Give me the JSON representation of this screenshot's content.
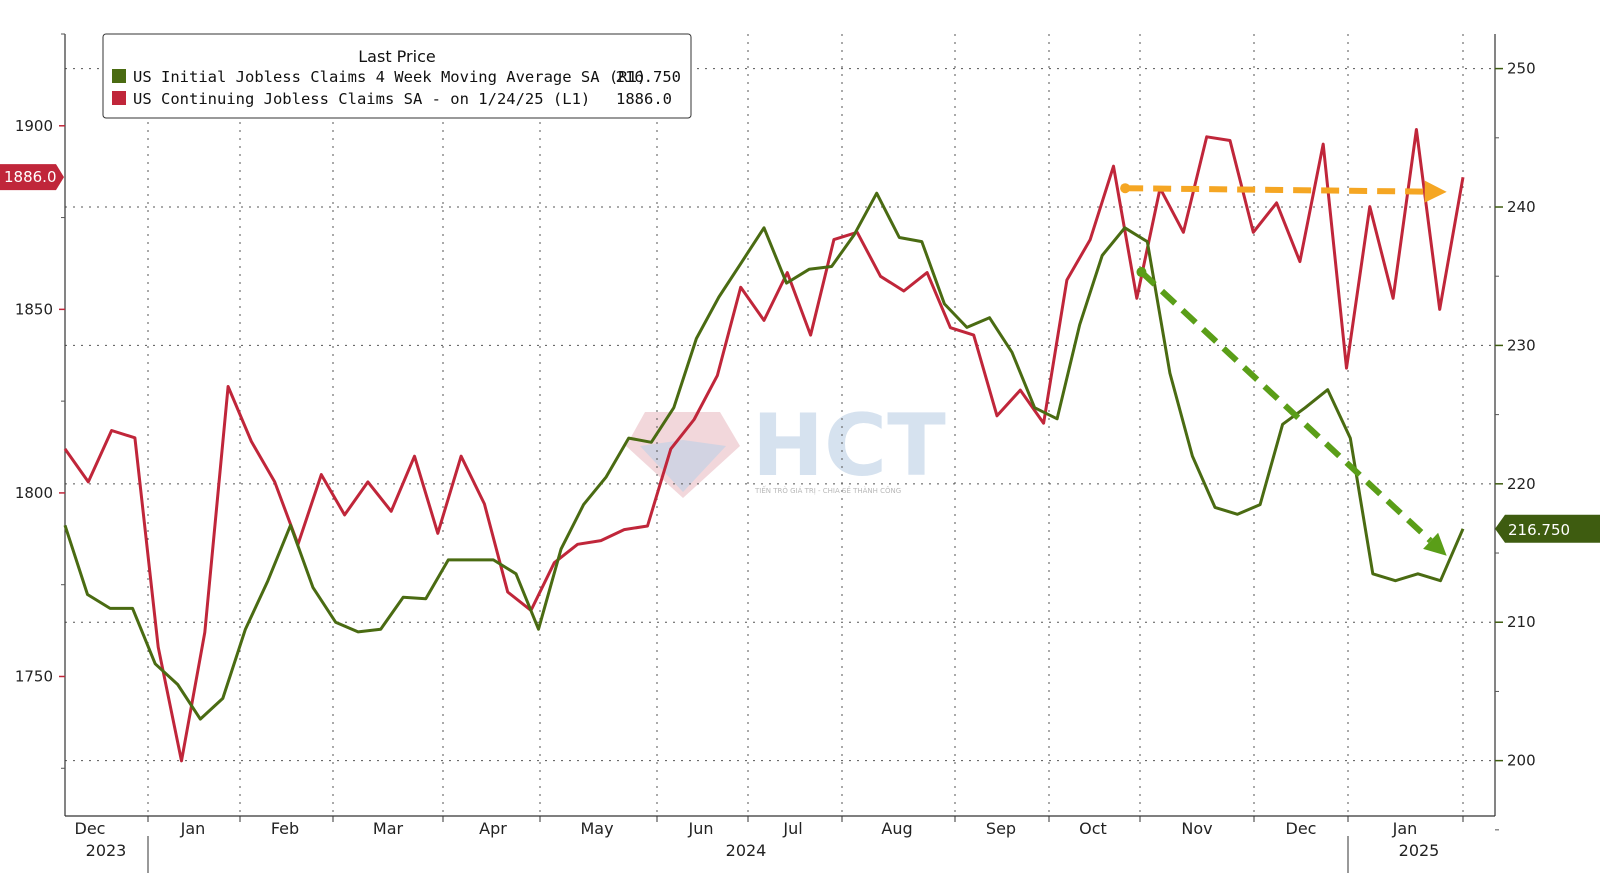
{
  "chart_data": {
    "type": "line",
    "legend": {
      "title": "Last Price",
      "placement": "top-left",
      "entries": [
        {
          "label": "US Initial Jobless Claims 4 Week Moving Average SA  (R1)",
          "value": "216.750",
          "color": "#4a6b12"
        },
        {
          "label": "US Continuing Jobless Claims SA -  on 1/24/25  (L1)",
          "value": "1886.0",
          "color": "#c0263a"
        }
      ]
    },
    "left_axis": {
      "ticks": [
        "1900",
        "1850",
        "1800",
        "1750"
      ],
      "tick_values": [
        1900,
        1850,
        1800,
        1750
      ],
      "range": [
        1712,
        1925
      ]
    },
    "right_axis": {
      "ticks": [
        "250",
        "240",
        "230",
        "220",
        "210",
        "200"
      ],
      "tick_values": [
        250,
        240,
        230,
        220,
        210,
        200
      ],
      "range": [
        196,
        252.5
      ]
    },
    "x_axis": {
      "months": [
        "Dec",
        "Jan",
        "Feb",
        "Mar",
        "Apr",
        "May",
        "Jun",
        "Jul",
        "Aug",
        "Sep",
        "Oct",
        "Nov",
        "Dec",
        "Jan"
      ],
      "years": [
        "2023",
        "2024",
        "2025"
      ],
      "range": [
        0,
        60.0
      ]
    },
    "series": [
      {
        "name": "US Continuing Jobless Claims SA -  on 1/24/25  (L1)",
        "axis": "left",
        "color": "#c0263a",
        "values": [
          1812,
          1803,
          1817,
          1815,
          1758,
          1727,
          1762,
          1829,
          1814,
          1803,
          1786,
          1805,
          1794,
          1803,
          1795,
          1810,
          1789,
          1810,
          1797,
          1773,
          1768,
          1781,
          1786,
          1787,
          1790,
          1791,
          1812,
          1820,
          1832,
          1856,
          1847,
          1860,
          1843,
          1869,
          1871,
          1859,
          1855,
          1860,
          1845,
          1843,
          1821,
          1828,
          1819,
          1858,
          1869,
          1889,
          1853,
          1883,
          1871,
          1897,
          1896,
          1871,
          1879,
          1863,
          1895,
          1834,
          1878,
          1853,
          1899,
          1850,
          1886
        ]
      },
      {
        "name": "US Initial Jobless Claims 4 Week Moving Average SA  (R1)",
        "axis": "right",
        "color": "#4a6b12",
        "values": [
          217,
          212,
          211,
          211,
          207,
          205.5,
          203,
          204.5,
          209.5,
          213,
          217,
          212.5,
          210,
          209.3,
          209.5,
          211.8,
          211.7,
          214.5,
          214.5,
          214.5,
          213.5,
          209.5,
          215.3,
          218.5,
          220.5,
          223.3,
          223,
          225.5,
          230.5,
          233.5,
          236,
          238.5,
          234.5,
          235.5,
          235.7,
          238,
          241,
          237.8,
          237.5,
          233,
          231.3,
          232,
          229.5,
          225.5,
          224.7,
          231.5,
          236.5,
          238.5,
          237.5,
          228,
          222,
          218.3,
          217.8,
          218.5,
          224.3,
          225.5,
          226.8,
          223.3,
          213.5,
          213,
          213.5,
          213,
          216.75
        ]
      }
    ],
    "value_tags": {
      "left": "1886.0",
      "right": "216.750"
    },
    "annotations": [
      {
        "type": "dashed-arrow",
        "color": "#f5a623",
        "axis": "left",
        "from": [
          45.5,
          1883
        ],
        "to": [
          59.3,
          1882
        ]
      },
      {
        "type": "dashed-arrow",
        "color": "#5a9e18",
        "axis": "right",
        "from": [
          46.2,
          235.3
        ],
        "to": [
          59.3,
          214.8
        ]
      }
    ],
    "grid": true
  },
  "watermark": {
    "text": "HCT",
    "subtitle": "TIẾN TRÒ GIÁ TRỊ - CHIA SẺ THÀNH CÔNG"
  }
}
